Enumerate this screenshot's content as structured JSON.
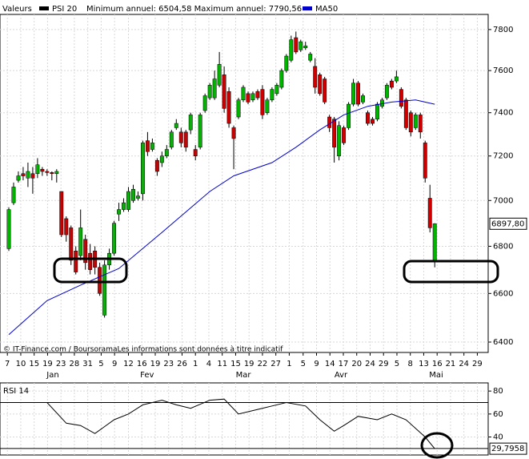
{
  "chart_data": [
    {
      "type": "candlestick",
      "legend_label": "Valeurs",
      "name": "PSI 20",
      "color": "#000000",
      "up_color": "#00b400",
      "down_color": "#cc0000",
      "annotation": "Minimum annuel: 6504,58 Maximum annuel: 7790,56",
      "source": "© IT-Finance.com / BoursoramaLes informations sont données à titre indicatif",
      "x": [
        0,
        1,
        2,
        3,
        4,
        5,
        6,
        7,
        8,
        9,
        10,
        11,
        12,
        13,
        14,
        15,
        16,
        17,
        18,
        19,
        20,
        21,
        22,
        23,
        24,
        25,
        26,
        27,
        28,
        29,
        30,
        31,
        32,
        33,
        34,
        35,
        36,
        37,
        38,
        39,
        40,
        41,
        42,
        43,
        44,
        45,
        46,
        47,
        48,
        49,
        50,
        51,
        52,
        53,
        54,
        55,
        56,
        57,
        58,
        59,
        60,
        61,
        62,
        63,
        64,
        65,
        66,
        67,
        68,
        69,
        70,
        71,
        72,
        73,
        74,
        75,
        76,
        77,
        78,
        79,
        80,
        81,
        82,
        83,
        84,
        85,
        86,
        87,
        88,
        89
      ],
      "open": [
        6790,
        6990,
        7090,
        7120,
        7100,
        7120,
        7120,
        7140,
        7130,
        7125,
        7120,
        7040,
        6920,
        6880,
        6780,
        6760,
        6830,
        6770,
        6780,
        6710,
        6510,
        6720,
        6770,
        6940,
        6960,
        6960,
        7000,
        7010,
        7030,
        7270,
        7230,
        7180,
        7170,
        7200,
        7240,
        7330,
        7310,
        7310,
        7320,
        7230,
        7240,
        7410,
        7470,
        7470,
        7530,
        7580,
        7500,
        7330,
        7380,
        7460,
        7490,
        7460,
        7500,
        7510,
        7400,
        7460,
        7490,
        7520,
        7600,
        7650,
        7760,
        7700,
        7710,
        7650,
        7620,
        7580,
        7560,
        7380,
        7370,
        7200,
        7330,
        7330,
        7440,
        7540,
        7450,
        7400,
        7370,
        7370,
        7430,
        7470,
        7550,
        7550,
        7510,
        7460,
        7400,
        7330,
        7390,
        7260,
        7010,
        6740
      ],
      "high": [
        6970,
        7080,
        7130,
        7150,
        7170,
        7150,
        7190,
        7150,
        7140,
        7130,
        7140,
        7040,
        6930,
        6890,
        6800,
        6960,
        6850,
        6810,
        6800,
        6730,
        6740,
        6790,
        6910,
        6990,
        7010,
        7060,
        7070,
        7040,
        7270,
        7310,
        7280,
        7190,
        7220,
        7250,
        7320,
        7370,
        7330,
        7320,
        7400,
        7250,
        7400,
        7490,
        7540,
        7600,
        7690,
        7620,
        7520,
        7340,
        7470,
        7530,
        7500,
        7500,
        7510,
        7530,
        7470,
        7520,
        7540,
        7610,
        7680,
        7770,
        7790,
        7750,
        7740,
        7690,
        7660,
        7590,
        7570,
        7390,
        7380,
        7360,
        7340,
        7450,
        7560,
        7550,
        7490,
        7410,
        7380,
        7450,
        7470,
        7540,
        7560,
        7600,
        7520,
        7470,
        7410,
        7400,
        7400,
        7270,
        7070,
        6900
      ],
      "low": [
        6780,
        6980,
        7080,
        7090,
        7060,
        7030,
        7100,
        7110,
        7110,
        7090,
        7080,
        6840,
        6820,
        6720,
        6680,
        6740,
        6700,
        6680,
        6680,
        6590,
        6500,
        6700,
        6760,
        6910,
        6950,
        6950,
        6990,
        7000,
        7000,
        7200,
        7220,
        7110,
        7150,
        7190,
        7230,
        7320,
        7240,
        7220,
        7300,
        7180,
        7230,
        7400,
        7460,
        7460,
        7520,
        7400,
        7330,
        7140,
        7370,
        7450,
        7440,
        7450,
        7460,
        7370,
        7390,
        7450,
        7480,
        7510,
        7590,
        7640,
        7680,
        7690,
        7700,
        7640,
        7490,
        7480,
        7440,
        7310,
        7170,
        7180,
        7250,
        7320,
        7430,
        7430,
        7440,
        7340,
        7340,
        7360,
        7420,
        7460,
        7510,
        7540,
        7420,
        7320,
        7290,
        7320,
        7280,
        7080,
        6860,
        6710
      ],
      "close": [
        6960,
        7060,
        7110,
        7110,
        7130,
        7100,
        7160,
        7130,
        7125,
        7120,
        7130,
        6850,
        6850,
        6740,
        6690,
        6880,
        6730,
        6700,
        6710,
        6600,
        6720,
        6770,
        6900,
        6960,
        6990,
        7040,
        7050,
        7020,
        7260,
        7220,
        7260,
        7130,
        7200,
        7230,
        7310,
        7350,
        7260,
        7240,
        7390,
        7200,
        7390,
        7480,
        7530,
        7560,
        7630,
        7420,
        7350,
        7280,
        7460,
        7520,
        7450,
        7490,
        7470,
        7390,
        7460,
        7510,
        7530,
        7600,
        7670,
        7750,
        7690,
        7740,
        7720,
        7680,
        7520,
        7490,
        7450,
        7330,
        7240,
        7340,
        7260,
        7440,
        7540,
        7440,
        7480,
        7350,
        7350,
        7440,
        7460,
        7530,
        7520,
        7570,
        7430,
        7330,
        7310,
        7390,
        7310,
        7100,
        6880,
        6897.8
      ],
      "last_value_label": "6897,80",
      "overlay": {
        "type": "line",
        "name": "MA50",
        "color": "#0000cc",
        "x": [
          0,
          8,
          15,
          23,
          32,
          42,
          47,
          55,
          60,
          65,
          70,
          75,
          80,
          85,
          89
        ],
        "values": [
          6430,
          6570,
          6635,
          6705,
          6860,
          7040,
          7110,
          7170,
          7240,
          7320,
          7390,
          7430,
          7450,
          7460,
          7440
        ]
      },
      "log_scale": true,
      "grid": true,
      "xlim": [
        -1.84,
        100.17
      ],
      "ylim": [
        6358,
        7875
      ],
      "yticks": [
        6400,
        6600,
        6800,
        7000,
        7200,
        7400,
        7600,
        7800
      ],
      "xticks": [
        {
          "value": -0.3,
          "label": "7"
        },
        {
          "value": 2.5,
          "label": "10"
        },
        {
          "value": 5.3,
          "label": "15"
        },
        {
          "value": 8.1,
          "label": "19"
        },
        {
          "value": 10.9,
          "label": "23"
        },
        {
          "value": 13.7,
          "label": "28"
        },
        {
          "value": 16.5,
          "label": "31"
        },
        {
          "value": 19.3,
          "label": "5"
        },
        {
          "value": 22.1,
          "label": "9"
        },
        {
          "value": 25.0,
          "label": "12"
        },
        {
          "value": 27.8,
          "label": "16"
        },
        {
          "value": 30.6,
          "label": "19"
        },
        {
          "value": 33.4,
          "label": "23"
        },
        {
          "value": 36.2,
          "label": "26"
        },
        {
          "value": 39.0,
          "label": "1"
        },
        {
          "value": 41.8,
          "label": "4"
        },
        {
          "value": 44.6,
          "label": "11"
        },
        {
          "value": 47.4,
          "label": "15"
        },
        {
          "value": 50.2,
          "label": "19"
        },
        {
          "value": 53.0,
          "label": "22"
        },
        {
          "value": 55.8,
          "label": "27"
        },
        {
          "value": 58.6,
          "label": "1"
        },
        {
          "value": 61.5,
          "label": "5"
        },
        {
          "value": 64.3,
          "label": "9"
        },
        {
          "value": 67.1,
          "label": "14"
        },
        {
          "value": 69.9,
          "label": "17"
        },
        {
          "value": 72.7,
          "label": "20"
        },
        {
          "value": 75.5,
          "label": "24"
        },
        {
          "value": 78.3,
          "label": "29"
        },
        {
          "value": 81.1,
          "label": "5"
        },
        {
          "value": 83.9,
          "label": "8"
        },
        {
          "value": 86.7,
          "label": "13"
        },
        {
          "value": 89.5,
          "label": "16"
        },
        {
          "value": 92.3,
          "label": "21"
        },
        {
          "value": 95.1,
          "label": "24"
        },
        {
          "value": 97.9,
          "label": "29"
        }
      ],
      "months": [
        {
          "value": 9.2,
          "label": "Jan"
        },
        {
          "value": 28.9,
          "label": "Fev"
        },
        {
          "value": 49.0,
          "label": "Mar"
        },
        {
          "value": 69.4,
          "label": "Avr"
        },
        {
          "value": 89.3,
          "label": "Mai"
        }
      ]
    },
    {
      "type": "line",
      "name": "RSI 14",
      "color": "#000000",
      "x": [
        0,
        8,
        12,
        15,
        18,
        22,
        25,
        28,
        32,
        35,
        38,
        42,
        45,
        48,
        52,
        55,
        58,
        62,
        65,
        68,
        70,
        73,
        77,
        80,
        83,
        87,
        89
      ],
      "values": [
        70,
        70,
        52,
        50,
        43,
        55,
        60,
        68,
        72,
        68,
        65,
        72,
        73,
        60,
        64,
        67,
        70,
        67,
        55,
        45,
        50,
        58,
        55,
        60,
        55,
        40,
        29.7958
      ],
      "last_value_label": "29,7958",
      "hlines": [
        70,
        30
      ],
      "xlim": [
        -1.84,
        100.17
      ],
      "ylim": [
        24.3,
        87.1
      ],
      "yticks": [
        40,
        60,
        80
      ],
      "grid": true
    }
  ]
}
